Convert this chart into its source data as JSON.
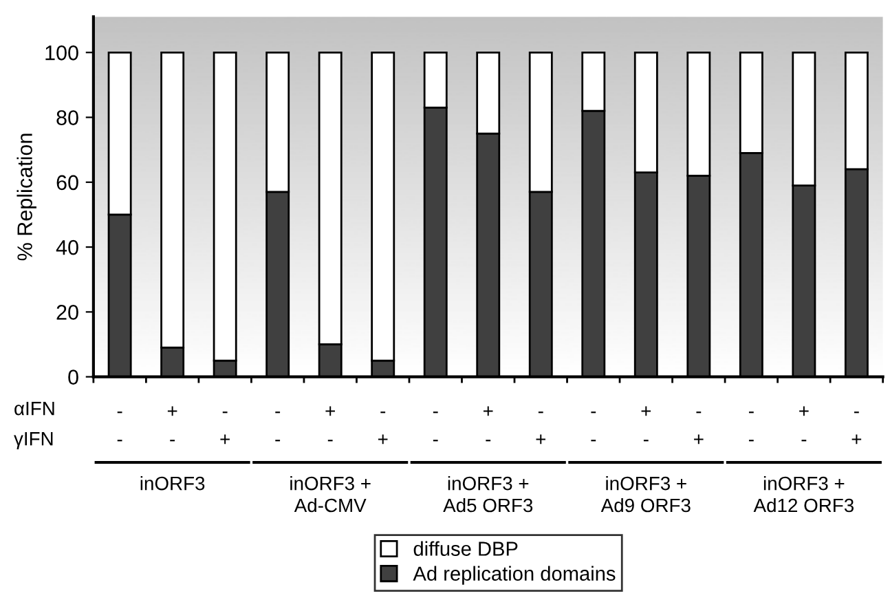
{
  "chart_data": {
    "type": "bar",
    "stacked": true,
    "ylabel": "% Replication",
    "categories": [
      "-\n-",
      "+\n-",
      "-\n+",
      "-\n-",
      "+\n-",
      "-\n+",
      "-\n-",
      "+\n-",
      "-\n+",
      "-\n-",
      "+\n-",
      "-\n+",
      "-\n-",
      "+\n-",
      "-\n+"
    ],
    "series": [
      {
        "name": "Ad replication domains",
        "color": "#404040",
        "values": [
          50,
          9,
          5,
          57,
          10,
          5,
          83,
          75,
          57,
          82,
          63,
          62,
          69,
          59,
          64
        ]
      },
      {
        "name": "diffuse DBP",
        "color": "#ffffff",
        "values": [
          50,
          91,
          95,
          43,
          90,
          95,
          17,
          25,
          43,
          18,
          37,
          38,
          31,
          41,
          36
        ]
      }
    ],
    "ylim": [
      0,
      111
    ],
    "yticks": [
      0,
      20,
      40,
      60,
      80,
      100
    ],
    "grid": false,
    "legend": "bottom",
    "annotations": [
      "αIFN",
      "γIFN",
      "inORF3",
      "inORF3 +\nAd-CMV",
      "inORF3 +\nAd5 ORF3",
      "inORF3 +\nAd9 ORF3",
      "inORF3 +\nAd12 ORF3"
    ]
  }
}
